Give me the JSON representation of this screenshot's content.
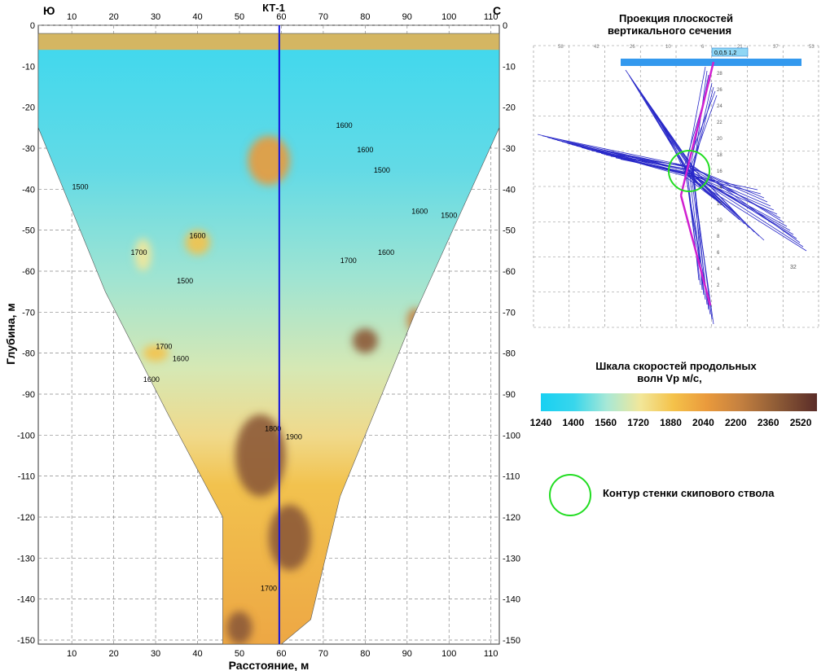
{
  "chart_data": {
    "type": "heatmap",
    "title": "",
    "xlabel": "Расстояние, м",
    "ylabel": "Глубина, м",
    "xlim": [
      2,
      112
    ],
    "ylim": [
      -151,
      0
    ],
    "x_ticks": [
      10,
      20,
      30,
      40,
      50,
      60,
      70,
      80,
      90,
      100,
      110
    ],
    "y_ticks": [
      0,
      -10,
      -20,
      -30,
      -40,
      -50,
      -60,
      -70,
      -80,
      -90,
      -100,
      -110,
      -120,
      -130,
      -140,
      -150
    ],
    "corner_left": "Ю",
    "corner_right": "С",
    "borehole": {
      "label": "КТ-1",
      "x": 59.5
    },
    "grid": true,
    "section_outline": [
      [
        2,
        -2
      ],
      [
        112,
        -2
      ],
      [
        112,
        -25
      ],
      [
        92,
        -70
      ],
      [
        74,
        -115
      ],
      [
        67,
        -145
      ],
      [
        60,
        -151
      ],
      [
        46,
        -151
      ],
      [
        46,
        -120
      ],
      [
        33,
        -95
      ],
      [
        18,
        -65
      ],
      [
        2,
        -25
      ]
    ],
    "velocity_anomalies": [
      {
        "x": 57,
        "y": -33,
        "vp": 2100,
        "rx": 5,
        "ry": 6
      },
      {
        "x": 80,
        "y": -77,
        "vp": 2500,
        "rx": 3,
        "ry": 3
      },
      {
        "x": 55,
        "y": -105,
        "vp": 2500,
        "rx": 6,
        "ry": 10
      },
      {
        "x": 62,
        "y": -125,
        "vp": 2400,
        "rx": 5,
        "ry": 8
      },
      {
        "x": 50,
        "y": -147,
        "vp": 2500,
        "rx": 3,
        "ry": 4
      },
      {
        "x": 92,
        "y": -72,
        "vp": 2300,
        "rx": 2,
        "ry": 3
      },
      {
        "x": 30,
        "y": -80,
        "vp": 1900,
        "rx": 3,
        "ry": 2
      },
      {
        "x": 40,
        "y": -53,
        "vp": 1850,
        "rx": 3,
        "ry": 3
      },
      {
        "x": 27,
        "y": -56,
        "vp": 1800,
        "rx": 2,
        "ry": 4
      }
    ],
    "contour_labels": [
      {
        "text": "1500",
        "x": 12,
        "y": -40
      },
      {
        "text": "1700",
        "x": 26,
        "y": -56
      },
      {
        "text": "1600",
        "x": 40,
        "y": -52
      },
      {
        "text": "1500",
        "x": 37,
        "y": -63
      },
      {
        "text": "1600",
        "x": 75,
        "y": -25
      },
      {
        "text": "1600",
        "x": 80,
        "y": -31
      },
      {
        "text": "1500",
        "x": 84,
        "y": -36
      },
      {
        "text": "1600",
        "x": 93,
        "y": -46
      },
      {
        "text": "1500",
        "x": 100,
        "y": -47
      },
      {
        "text": "1600",
        "x": 85,
        "y": -56
      },
      {
        "text": "1700",
        "x": 76,
        "y": -58
      },
      {
        "text": "1700",
        "x": 32,
        "y": -79
      },
      {
        "text": "1600",
        "x": 36,
        "y": -82
      },
      {
        "text": "1600",
        "x": 29,
        "y": -87
      },
      {
        "text": "1800",
        "x": 58,
        "y": -99
      },
      {
        "text": "1900",
        "x": 63,
        "y": -101
      },
      {
        "text": "1700",
        "x": 57,
        "y": -138
      }
    ],
    "legend": {
      "title": "Шкала скоростей продольных волн Vp м/с,",
      "ticks": [
        1240,
        1400,
        1560,
        1720,
        1880,
        2040,
        2200,
        2360,
        2520
      ],
      "min": 1240,
      "max": 2600,
      "colors": [
        "#18d0f2",
        "#38d6ec",
        "#a8e8d6",
        "#f2e79a",
        "#f4c24a",
        "#ea9a3c",
        "#c58140",
        "#8c5a36",
        "#5a2c28"
      ]
    },
    "shaft_contour_legend": "Контур стенки скипового ствола",
    "projection": {
      "title": "Проекция плоскостей вертикального сечения",
      "top_ticks": [
        "58",
        "42",
        "26",
        "10",
        "6",
        "21",
        "37",
        "53"
      ],
      "right_labels": [
        "28",
        "26",
        "24",
        "22",
        "20",
        "18",
        "16",
        "14",
        "12",
        "10",
        "8",
        "6",
        "4",
        "2"
      ],
      "box_label": "0,0,5 1,2",
      "bottom_labels": [
        "32"
      ]
    },
    "colors": {
      "blue_line": "#1010e0",
      "fan_lines": "#2828c8",
      "magenta": "#d020d0",
      "green": "#22dd22",
      "bar": "#3399ee"
    }
  }
}
